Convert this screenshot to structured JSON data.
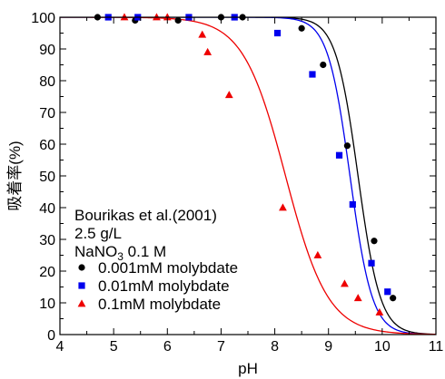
{
  "chart_data": {
    "type": "scatter",
    "xlabel": "pH",
    "ylabel": "吸着率(%)",
    "xlim": [
      4,
      11
    ],
    "ylim": [
      0,
      100
    ],
    "xticks": [
      4,
      5,
      6,
      7,
      8,
      9,
      10,
      11
    ],
    "yticks": [
      0,
      10,
      20,
      30,
      40,
      50,
      60,
      70,
      80,
      90,
      100
    ],
    "grid": false,
    "legend_position": "bottom-left",
    "annotations": {
      "line1": "Bourikas et al.(2001)",
      "line2": "2.5 g/L",
      "line3_main": "NaNO",
      "line3_sub": "3",
      "line3_rest": " 0.1 M"
    },
    "series": [
      {
        "name": "0.001mM molybdate",
        "marker": "circle",
        "color": "#000000",
        "points": [
          [
            4.7,
            100
          ],
          [
            5.4,
            99
          ],
          [
            6.2,
            99
          ],
          [
            7.0,
            100
          ],
          [
            7.4,
            100
          ],
          [
            8.5,
            96.5
          ],
          [
            8.9,
            85
          ],
          [
            9.35,
            59.5
          ],
          [
            9.85,
            29.5
          ],
          [
            10.2,
            11.5
          ]
        ],
        "curve": {
          "pH50": 9.55,
          "k": 2.1,
          "top": 100,
          "bottom": 0
        }
      },
      {
        "name": "0.01mM molybdate",
        "marker": "square",
        "color": "#0000ee",
        "points": [
          [
            4.9,
            100
          ],
          [
            5.45,
            100
          ],
          [
            6.4,
            100
          ],
          [
            7.25,
            100
          ],
          [
            8.05,
            95
          ],
          [
            8.7,
            82
          ],
          [
            9.2,
            56.5
          ],
          [
            9.45,
            41
          ],
          [
            9.8,
            22.5
          ],
          [
            10.1,
            13.5
          ]
        ],
        "curve": {
          "pH50": 9.4,
          "k": 2.1,
          "top": 100,
          "bottom": 0
        }
      },
      {
        "name": "0.1mM molybdate",
        "marker": "triangle",
        "color": "#ee0000",
        "points": [
          [
            5.2,
            100
          ],
          [
            5.8,
            100
          ],
          [
            6.0,
            100
          ],
          [
            6.65,
            94.5
          ],
          [
            6.75,
            89
          ],
          [
            7.15,
            75.5
          ],
          [
            8.15,
            40
          ],
          [
            8.8,
            25
          ],
          [
            9.3,
            16
          ],
          [
            9.55,
            11.5
          ],
          [
            9.95,
            7
          ]
        ],
        "curve": {
          "pH50": 8.2,
          "k": 1.1,
          "top": 100,
          "bottom": 0
        }
      }
    ]
  }
}
